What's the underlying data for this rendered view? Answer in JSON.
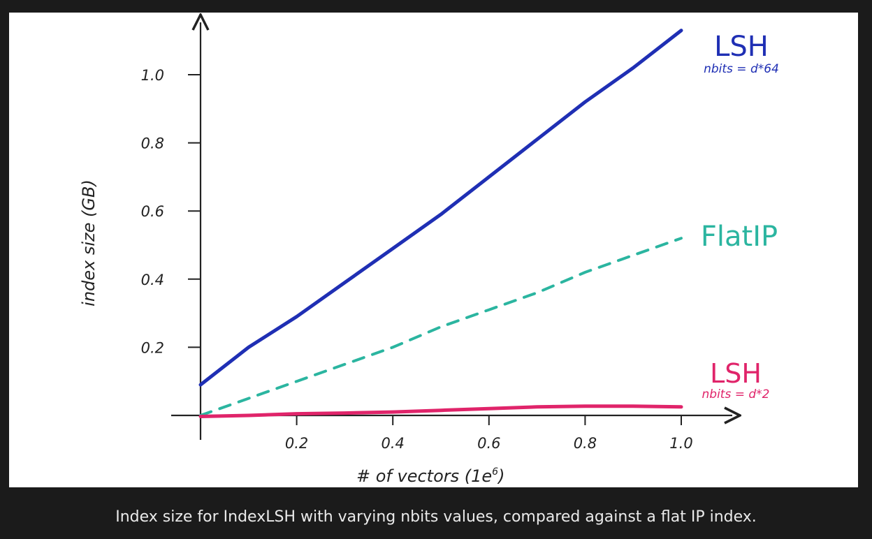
{
  "caption": "Index size for IndexLSH with varying nbits values, compared against a flat IP index.",
  "chart_data": {
    "type": "line",
    "title": "",
    "xlabel": "# of vectors (1e",
    "xlabel_exponent": "6",
    "xlabel_close": ")",
    "ylabel": "index size (GB)",
    "xlim": [
      0,
      1.1
    ],
    "ylim": [
      0,
      1.15
    ],
    "x_ticks": [
      "0.2",
      "0.4",
      "0.6",
      "0.8",
      "1.0"
    ],
    "x_tick_values": [
      0.2,
      0.4,
      0.6,
      0.8,
      1.0
    ],
    "y_ticks": [
      "0.2",
      "0.4",
      "0.6",
      "0.8",
      "1.0"
    ],
    "y_tick_values": [
      0.2,
      0.4,
      0.6,
      0.8,
      1.0
    ],
    "grid": false,
    "series": [
      {
        "name": "LSH",
        "sublabel": "nbits = d*64",
        "color": "#1f2fb4",
        "style": "solid",
        "x": [
          0.0,
          0.1,
          0.2,
          0.3,
          0.4,
          0.5,
          0.6,
          0.7,
          0.8,
          0.9,
          1.0
        ],
        "y": [
          0.09,
          0.2,
          0.29,
          0.39,
          0.49,
          0.59,
          0.7,
          0.81,
          0.92,
          1.02,
          1.13
        ]
      },
      {
        "name": "FlatIP",
        "sublabel": "",
        "color": "#2bb5a0",
        "style": "dashed",
        "x": [
          0.0,
          0.1,
          0.2,
          0.3,
          0.4,
          0.5,
          0.6,
          0.7,
          0.8,
          0.9,
          1.0
        ],
        "y": [
          0.0,
          0.05,
          0.1,
          0.15,
          0.2,
          0.26,
          0.31,
          0.36,
          0.42,
          0.47,
          0.52
        ]
      },
      {
        "name": "LSH",
        "sublabel": "nbits = d*2",
        "color": "#e0246a",
        "style": "solid",
        "x": [
          0.0,
          0.1,
          0.2,
          0.3,
          0.4,
          0.5,
          0.6,
          0.7,
          0.8,
          0.9,
          1.0
        ],
        "y": [
          -0.003,
          0.0,
          0.005,
          0.007,
          0.01,
          0.015,
          0.02,
          0.025,
          0.027,
          0.027,
          0.025
        ]
      }
    ]
  }
}
